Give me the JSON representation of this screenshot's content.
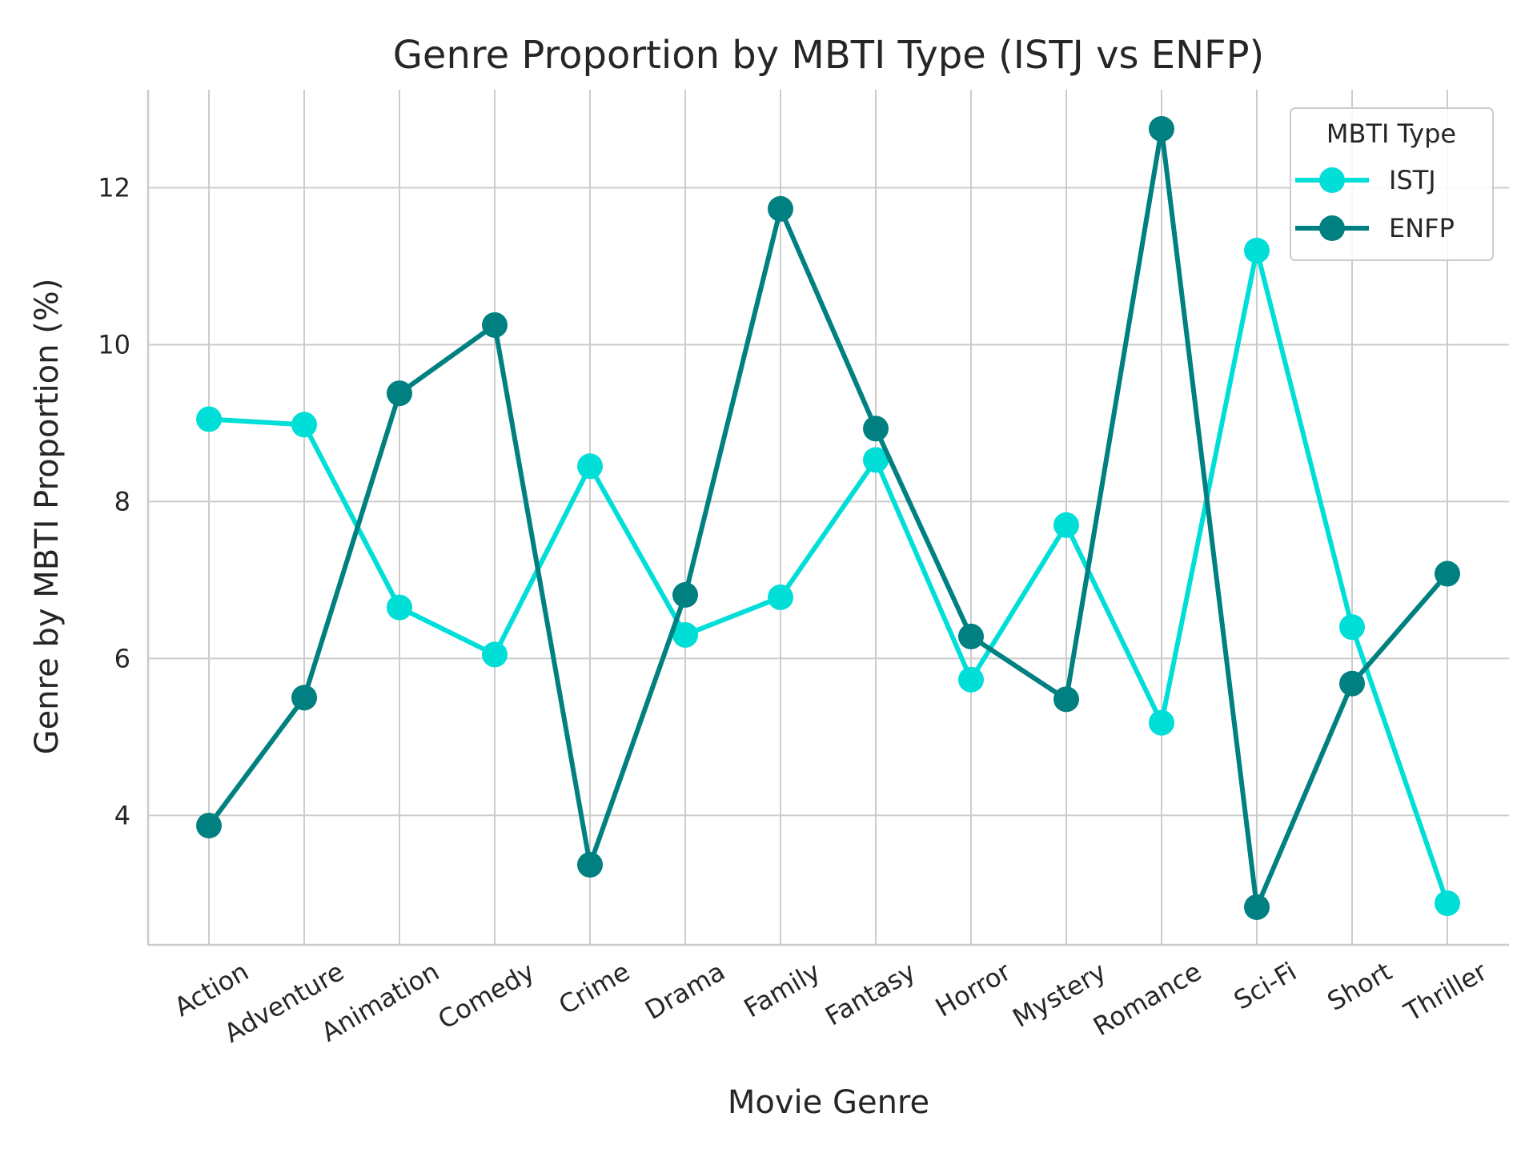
{
  "chart_data": {
    "type": "line",
    "title": "Genre Proportion by MBTI Type (ISTJ vs ENFP)",
    "xlabel": "Movie Genre",
    "ylabel": "Genre by MBTI Proportion (%)",
    "categories": [
      "Action",
      "Adventure",
      "Animation",
      "Comedy",
      "Crime",
      "Drama",
      "Family",
      "Fantasy",
      "Horror",
      "Mystery",
      "Romance",
      "Sci-Fi",
      "Short",
      "Thriller"
    ],
    "ylim": [
      2.35,
      13.25
    ],
    "yticks": [
      4,
      6,
      8,
      10,
      12
    ],
    "grid": true,
    "legend": {
      "title": "MBTI Type",
      "placement": "upper right"
    },
    "series": [
      {
        "name": "ISTJ",
        "color": "#00DED8",
        "values": [
          9.05,
          8.98,
          6.65,
          6.05,
          8.45,
          6.3,
          6.78,
          8.53,
          5.73,
          7.7,
          5.18,
          11.2,
          6.4,
          2.88
        ]
      },
      {
        "name": "ENFP",
        "color": "#008080",
        "values": [
          3.87,
          5.5,
          9.38,
          10.25,
          3.37,
          6.81,
          11.73,
          8.93,
          6.28,
          5.48,
          12.75,
          2.83,
          5.68,
          7.08
        ]
      }
    ]
  }
}
